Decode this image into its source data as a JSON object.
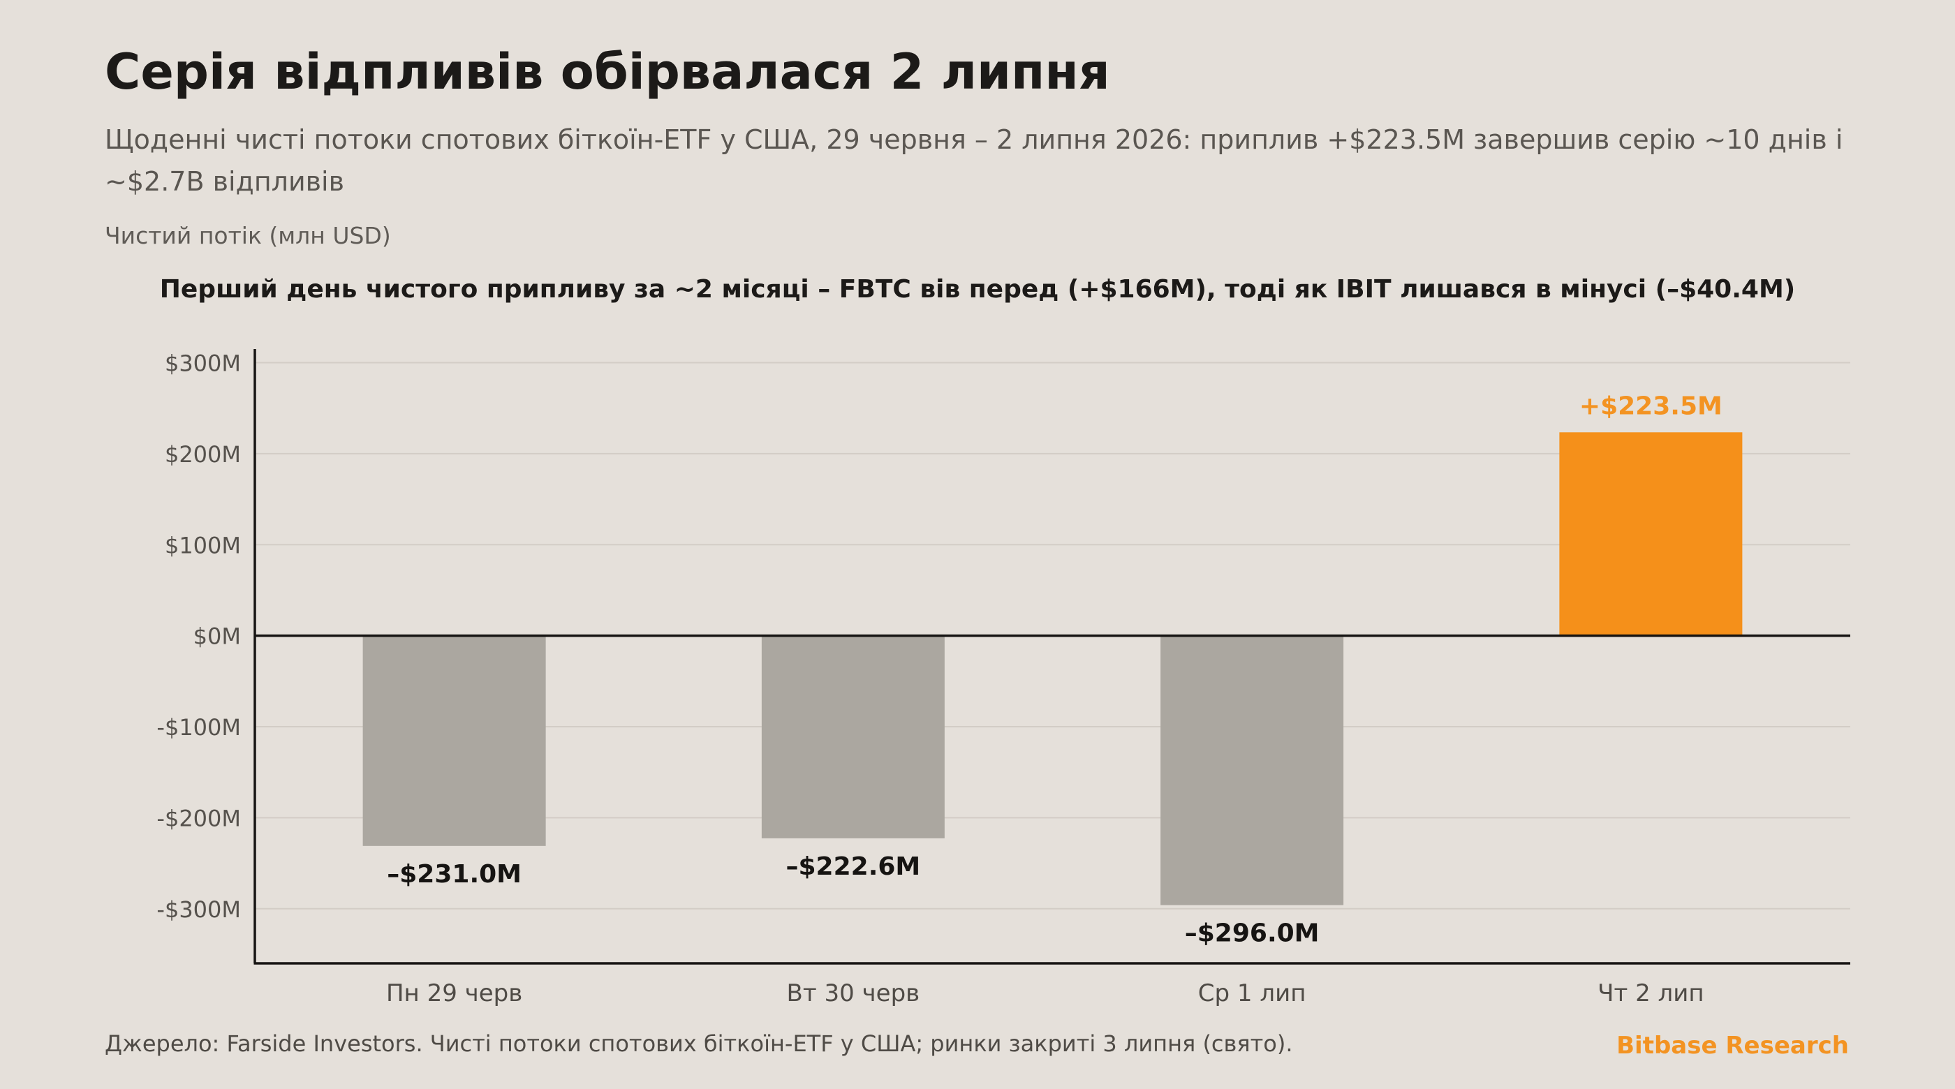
{
  "header": {
    "title": "Серія відпливів обірвалася 2 липня",
    "subtitle": "Щоденні чисті потоки спотових біткоїн-ETF у США, 29 червня – 2 липня 2026: приплив +$223.5M завершив серію ~10 днів і ~$2.7B відпливів"
  },
  "footer": {
    "source": "Джерело: Farside Investors. Чисті потоки спотових біткоїн-ETF у США; ринки закриті 3 липня (свято).",
    "brand": "Bitbase Research"
  },
  "chart_data": {
    "type": "bar",
    "ylabel": "Чистий потік (млн USD)",
    "annotation": "Перший день чистого припливу за ~2 місяці – FBTC вів перед (+$166M), тоді як IBIT лишався в мінусі (–$40.4M)",
    "categories": [
      "Пн 29 черв",
      "Вт 30 черв",
      "Ср 1 лип",
      "Чт 2 лип"
    ],
    "values": [
      -231.0,
      -222.6,
      -296.0,
      223.5
    ],
    "value_labels": [
      "–$231.0M",
      "–$222.6M",
      "–$296.0M",
      "+$223.5M"
    ],
    "yticks": [
      300,
      200,
      100,
      0,
      -100,
      -200,
      -300
    ],
    "ytick_labels": [
      "$300M",
      "$200M",
      "$100M",
      "$0M",
      "-$100M",
      "-$200M",
      "-$300M"
    ],
    "ylim": [
      -360,
      315
    ],
    "grid": true,
    "colors": {
      "negative": "#aba7a0",
      "positive": "#f5901a",
      "positive_label": "#f39322",
      "negative_label": "#161412"
    }
  }
}
